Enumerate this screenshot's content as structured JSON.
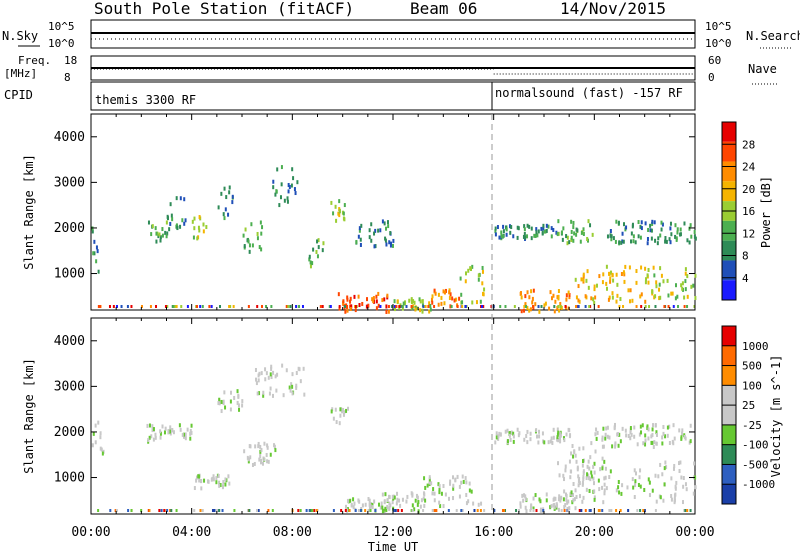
{
  "header": {
    "station": "South Pole Station (fitACF)",
    "beam": "Beam 06",
    "date": "14/Nov/2015"
  },
  "noise_panel": {
    "left_label": "N.Sky",
    "right_label": "N.Search",
    "left_ticks": [
      "10^5",
      "10^0"
    ],
    "right_ticks": [
      "10^5",
      "10^0"
    ]
  },
  "freq_panel": {
    "left_label_line1": "Freq.",
    "left_label_line2": "[MHz]",
    "right_label": "Nave",
    "left_ticks": [
      "18",
      "8"
    ],
    "right_ticks": [
      "60",
      "0"
    ]
  },
  "cpid_panel": {
    "label": "CPID",
    "segments": [
      {
        "text": "themis 3300 RF",
        "start_hour": 0
      },
      {
        "text": "normalsound (fast) -157 RF",
        "start_hour": 16
      }
    ]
  },
  "colors": {
    "power": [
      "#1a1aff",
      "#1f4fb8",
      "#2e8b57",
      "#4caf50",
      "#9acd32",
      "#f5b400",
      "#ff8c00",
      "#ff4500",
      "#e60000"
    ],
    "velocity": [
      "#1a3fa8",
      "#2e5fc0",
      "#2e8b57",
      "#66c832",
      "#c8c8c8",
      "#c8c8c8",
      "#ff8c00",
      "#ff6a00",
      "#e60000"
    ]
  },
  "chart_data": [
    {
      "type": "heatmap",
      "title": "Power",
      "ylabel": "Slant Range [km]",
      "xlabel": "",
      "xlim": [
        0,
        24
      ],
      "ylim": [
        200,
        4500
      ],
      "yticks": [
        1000,
        2000,
        3000,
        4000
      ],
      "colorbar": {
        "label": "Power [dB]",
        "ticks": [
          "4",
          "8",
          "12",
          "16",
          "20",
          "24",
          "28"
        ],
        "range": [
          0,
          30
        ]
      },
      "regions": [
        {
          "t0": 0.0,
          "t1": 0.4,
          "r0": 1000,
          "r1": 2100,
          "level": 6
        },
        {
          "t0": 2.2,
          "t1": 3.0,
          "r0": 1700,
          "r1": 2200,
          "level": 12
        },
        {
          "t0": 3.0,
          "t1": 3.8,
          "r0": 2000,
          "r1": 2800,
          "level": 8
        },
        {
          "t0": 4.0,
          "t1": 4.6,
          "r0": 1800,
          "r1": 2300,
          "level": 14
        },
        {
          "t0": 5.0,
          "t1": 5.6,
          "r0": 2200,
          "r1": 3000,
          "level": 8
        },
        {
          "t0": 6.0,
          "t1": 6.8,
          "r0": 1500,
          "r1": 2200,
          "level": 10
        },
        {
          "t0": 7.2,
          "t1": 8.2,
          "r0": 2500,
          "r1": 3400,
          "level": 8
        },
        {
          "t0": 8.6,
          "t1": 9.2,
          "r0": 1200,
          "r1": 1800,
          "level": 10
        },
        {
          "t0": 9.5,
          "t1": 10.2,
          "r0": 2200,
          "r1": 2700,
          "level": 16
        },
        {
          "t0": 9.8,
          "t1": 11.8,
          "r0": 200,
          "r1": 600,
          "level": 26
        },
        {
          "t0": 10.5,
          "t1": 12.0,
          "r0": 1600,
          "r1": 2200,
          "level": 6
        },
        {
          "t0": 12.0,
          "t1": 13.5,
          "r0": 200,
          "r1": 500,
          "level": 14
        },
        {
          "t0": 13.5,
          "t1": 14.6,
          "r0": 300,
          "r1": 700,
          "level": 22
        },
        {
          "t0": 14.6,
          "t1": 15.6,
          "r0": 400,
          "r1": 1200,
          "level": 14
        },
        {
          "t0": 16.0,
          "t1": 18.5,
          "r0": 1800,
          "r1": 2100,
          "level": 6
        },
        {
          "t0": 17.0,
          "t1": 19.0,
          "r0": 200,
          "r1": 700,
          "level": 22
        },
        {
          "t0": 18.5,
          "t1": 20.0,
          "r0": 1700,
          "r1": 2200,
          "level": 12
        },
        {
          "t0": 19.2,
          "t1": 22.0,
          "r0": 400,
          "r1": 1200,
          "level": 18
        },
        {
          "t0": 20.5,
          "t1": 24.0,
          "r0": 1700,
          "r1": 2200,
          "level": 8
        },
        {
          "t0": 22.0,
          "t1": 24.0,
          "r0": 500,
          "r1": 1200,
          "level": 14
        }
      ]
    },
    {
      "type": "heatmap",
      "title": "Velocity",
      "ylabel": "Slant Range [km]",
      "xlabel": "Time UT",
      "xlim": [
        0,
        24
      ],
      "ylim": [
        200,
        4500
      ],
      "yticks": [
        1000,
        2000,
        3000,
        4000
      ],
      "xticks": [
        "00:00",
        "04:00",
        "08:00",
        "12:00",
        "16:00",
        "20:00",
        "00:00"
      ],
      "colorbar": {
        "label": "Velocity [m s^-1]",
        "ticks": [
          "1000",
          "500",
          "100",
          "25",
          "-25",
          "-100",
          "-500",
          "-1000"
        ],
        "range": [
          -1000,
          1000
        ]
      },
      "regions": [
        {
          "t0": 0.0,
          "t1": 0.5,
          "r0": 1500,
          "r1": 2300,
          "level": 3
        },
        {
          "t0": 2.2,
          "t1": 4.0,
          "r0": 1800,
          "r1": 2200,
          "level": 4
        },
        {
          "t0": 4.0,
          "t1": 5.5,
          "r0": 800,
          "r1": 1100,
          "level": 6
        },
        {
          "t0": 5.0,
          "t1": 6.0,
          "r0": 2500,
          "r1": 3000,
          "level": 6
        },
        {
          "t0": 6.5,
          "t1": 8.5,
          "r0": 2800,
          "r1": 3500,
          "level": 4
        },
        {
          "t0": 6.0,
          "t1": 7.5,
          "r0": 1300,
          "r1": 1800,
          "level": 6
        },
        {
          "t0": 9.5,
          "t1": 10.2,
          "r0": 2200,
          "r1": 2600,
          "level": 5
        },
        {
          "t0": 10.0,
          "t1": 12.0,
          "r0": 300,
          "r1": 600,
          "level": 3
        },
        {
          "t0": 11.5,
          "t1": 13.0,
          "r0": 300,
          "r1": 700,
          "level": 2
        },
        {
          "t0": 13.0,
          "t1": 15.5,
          "r0": 400,
          "r1": 1100,
          "level": 3
        },
        {
          "t0": 16.0,
          "t1": 19.0,
          "r0": 1800,
          "r1": 2100,
          "level": 4
        },
        {
          "t0": 17.0,
          "t1": 19.5,
          "r0": 300,
          "r1": 700,
          "level": 6
        },
        {
          "t0": 18.5,
          "t1": 24.0,
          "r0": 500,
          "r1": 1400,
          "level": 2
        },
        {
          "t0": 20.0,
          "t1": 24.0,
          "r0": 1700,
          "r1": 2200,
          "level": 4
        },
        {
          "t0": 19.0,
          "t1": 20.5,
          "r0": 1000,
          "r1": 1800,
          "level": 1
        }
      ]
    }
  ]
}
